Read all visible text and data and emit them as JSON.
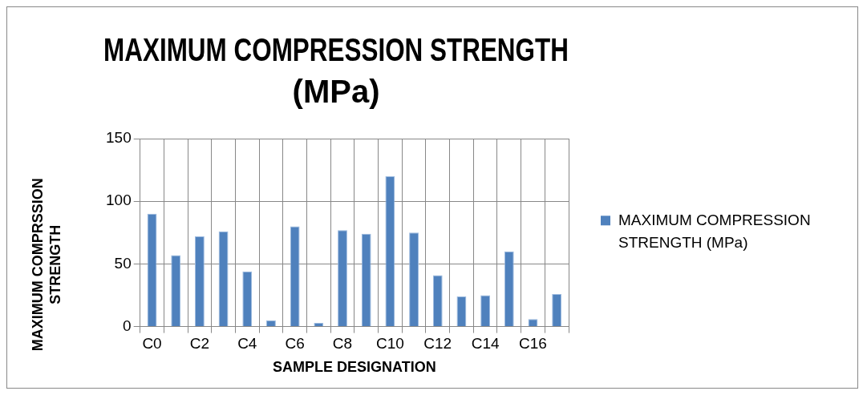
{
  "chart_data": {
    "type": "bar",
    "title": "MAXIMUM COMPRESSION STRENGTH (MPa)",
    "xlabel": "SAMPLE DESIGNATION",
    "ylabel": "MAXIMUM COMPRSSION STRENGTH",
    "categories": [
      "C0",
      null,
      "C2",
      null,
      "C4",
      null,
      "C6",
      null,
      "C8",
      null,
      "C10",
      null,
      "C12",
      null,
      "C14",
      null,
      "C16",
      null
    ],
    "series": [
      {
        "name": "MAXIMUM COMPRESSION STRENGTH (MPa)",
        "color": "#4f81bd",
        "values": [
          90,
          57,
          72,
          76,
          44,
          5,
          80,
          3,
          77,
          74,
          120,
          75,
          41,
          24,
          25,
          60,
          6,
          26
        ]
      }
    ],
    "ylim": [
      0,
      150
    ],
    "yticks": [
      0,
      50,
      100,
      150
    ],
    "grid": true,
    "legend": "right"
  }
}
